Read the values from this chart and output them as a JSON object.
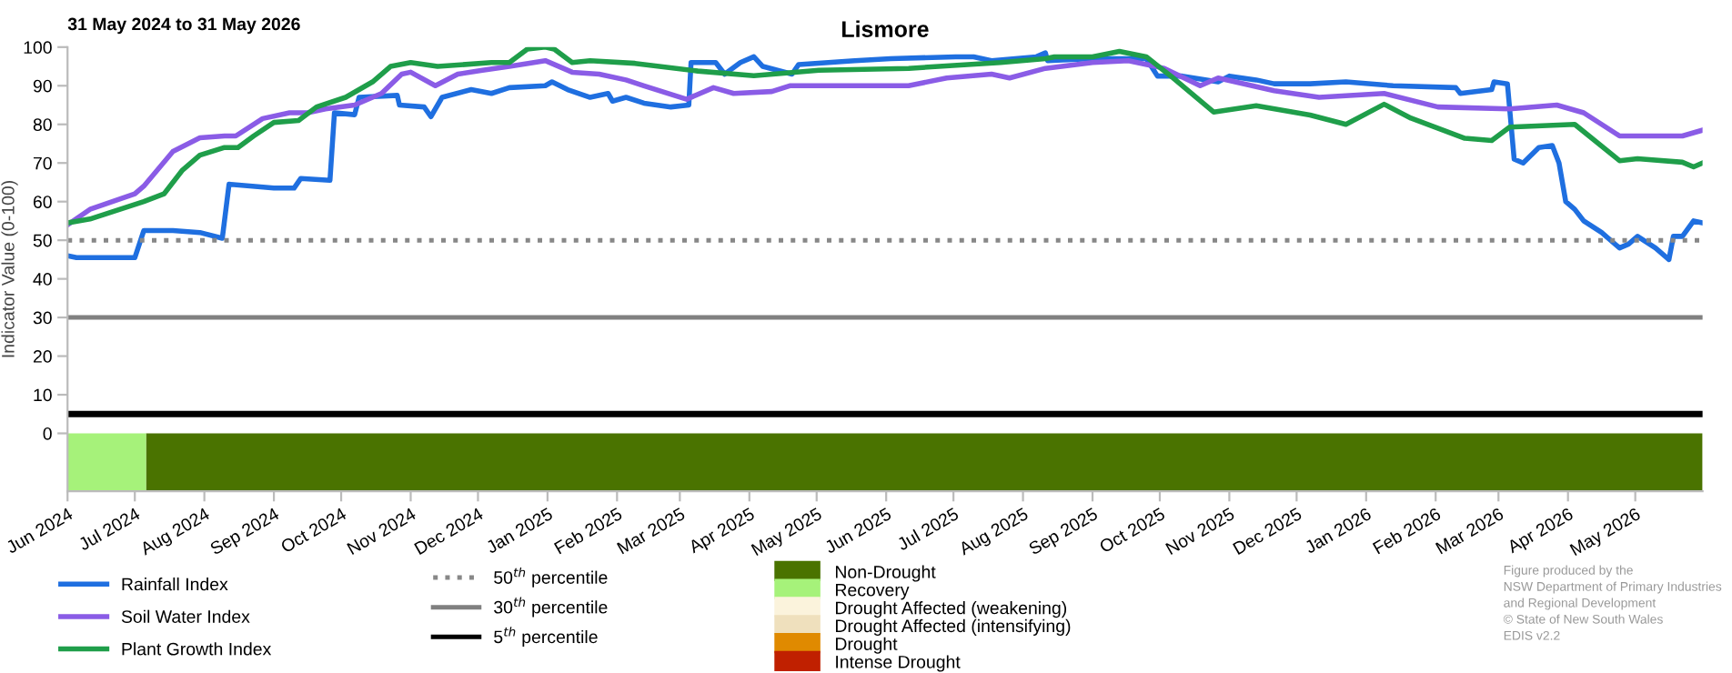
{
  "chart_data": {
    "type": "line",
    "title": "Lismore",
    "subtitle": "31 May 2024 to 31 May 2026",
    "ylabel": "Indicator Value (0-100)",
    "xlim": [
      "2024-06-01",
      "2026-05-31"
    ],
    "xticks": [
      {
        "value": "2024-06-01",
        "label": "Jun 2024"
      },
      {
        "value": "2024-07-01",
        "label": "Jul 2024"
      },
      {
        "value": "2024-08-01",
        "label": "Aug 2024"
      },
      {
        "value": "2024-09-01",
        "label": "Sep 2024"
      },
      {
        "value": "2024-10-01",
        "label": "Oct 2024"
      },
      {
        "value": "2024-11-01",
        "label": "Nov 2024"
      },
      {
        "value": "2024-12-01",
        "label": "Dec 2024"
      },
      {
        "value": "2025-01-01",
        "label": "Jan 2025"
      },
      {
        "value": "2025-02-01",
        "label": "Feb 2025"
      },
      {
        "value": "2025-03-01",
        "label": "Mar 2025"
      },
      {
        "value": "2025-04-01",
        "label": "Apr 2025"
      },
      {
        "value": "2025-05-01",
        "label": "May 2025"
      },
      {
        "value": "2025-06-01",
        "label": "Jun 2025"
      },
      {
        "value": "2025-07-01",
        "label": "Jul 2025"
      },
      {
        "value": "2025-08-01",
        "label": "Aug 2025"
      },
      {
        "value": "2025-09-01",
        "label": "Sep 2025"
      },
      {
        "value": "2025-10-01",
        "label": "Oct 2025"
      },
      {
        "value": "2025-11-01",
        "label": "Nov 2025"
      },
      {
        "value": "2025-12-01",
        "label": "Dec 2025"
      },
      {
        "value": "2026-01-01",
        "label": "Jan 2026"
      },
      {
        "value": "2026-02-01",
        "label": "Feb 2026"
      },
      {
        "value": "2026-03-01",
        "label": "Mar 2026"
      },
      {
        "value": "2026-04-01",
        "label": "Apr 2026"
      },
      {
        "value": "2026-05-01",
        "label": "May 2026"
      }
    ],
    "ylim": [
      -15,
      100
    ],
    "yticks": [
      0,
      10,
      20,
      30,
      40,
      50,
      60,
      70,
      80,
      90,
      100
    ],
    "grid": false,
    "legend": "bottom",
    "line_style": "solid",
    "marker": "none",
    "series": [
      {
        "name": "Rainfall Index",
        "color": "#1f6fe0",
        "x": [
          "2024-06-01",
          "2024-06-05",
          "2024-07-01",
          "2024-07-05",
          "2024-07-18",
          "2024-07-30",
          "2024-08-09",
          "2024-08-12",
          "2024-09-01",
          "2024-09-10",
          "2024-09-13",
          "2024-09-26",
          "2024-09-28",
          "2024-10-07",
          "2024-10-09",
          "2024-10-26",
          "2024-10-27",
          "2024-11-07",
          "2024-11-10",
          "2024-11-15",
          "2024-11-28",
          "2024-12-07",
          "2024-12-15",
          "2024-12-31",
          "2025-01-03",
          "2025-01-10",
          "2025-01-20",
          "2025-01-28",
          "2025-01-30",
          "2025-02-05",
          "2025-02-13",
          "2025-02-25",
          "2025-03-05",
          "2025-03-06",
          "2025-03-17",
          "2025-03-21",
          "2025-03-28",
          "2025-04-03",
          "2025-04-07",
          "2025-04-20",
          "2025-04-23",
          "2025-05-18",
          "2025-06-03",
          "2025-07-02",
          "2025-07-10",
          "2025-07-18",
          "2025-08-07",
          "2025-08-11",
          "2025-08-12",
          "2025-09-01",
          "2025-09-25",
          "2025-09-30",
          "2025-10-11",
          "2025-10-27",
          "2025-11-01",
          "2025-11-13",
          "2025-11-21",
          "2025-12-07",
          "2025-12-23",
          "2026-01-13",
          "2026-02-10",
          "2026-02-12",
          "2026-02-26",
          "2026-02-27",
          "2026-03-05",
          "2026-03-08",
          "2026-03-12",
          "2026-03-19",
          "2026-03-25",
          "2026-03-28",
          "2026-03-31",
          "2026-04-04",
          "2026-04-08",
          "2026-04-16",
          "2026-04-24",
          "2026-04-28",
          "2026-05-02",
          "2026-05-10",
          "2026-05-16",
          "2026-05-18",
          "2026-05-22",
          "2026-05-27",
          "2026-05-31"
        ],
        "values": [
          46,
          45.5,
          45.5,
          52.5,
          52.5,
          52,
          50.5,
          64.5,
          63.5,
          63.5,
          66,
          65.5,
          83,
          82.5,
          87,
          87.5,
          85,
          84.5,
          82,
          87,
          89,
          88,
          89.5,
          90,
          91,
          89,
          87,
          88,
          86,
          87,
          85.5,
          84.5,
          85,
          96,
          96,
          93,
          96,
          97.5,
          95,
          93,
          95.5,
          96.5,
          97,
          97.5,
          97.5,
          96.5,
          97.5,
          98.5,
          96.5,
          97,
          97,
          92.5,
          92.5,
          91,
          92.5,
          91.5,
          90.5,
          90.5,
          91,
          90,
          89.5,
          88,
          89,
          91,
          90.5,
          71,
          70,
          74,
          74.5,
          70,
          60,
          58,
          55,
          52,
          48,
          49,
          51,
          48,
          45,
          51,
          51,
          55,
          54.5
        ]
      },
      {
        "name": "Soil Water Index",
        "color": "#8a5ce6",
        "x": [
          "2024-06-01",
          "2024-06-11",
          "2024-07-01",
          "2024-07-05",
          "2024-07-18",
          "2024-07-30",
          "2024-08-10",
          "2024-08-15",
          "2024-08-27",
          "2024-09-08",
          "2024-09-16",
          "2024-09-24",
          "2024-10-07",
          "2024-10-19",
          "2024-10-28",
          "2024-11-01",
          "2024-11-12",
          "2024-11-22",
          "2024-12-03",
          "2024-12-15",
          "2024-12-31",
          "2025-01-12",
          "2025-01-24",
          "2025-02-05",
          "2025-02-13",
          "2025-03-04",
          "2025-03-16",
          "2025-03-25",
          "2025-04-11",
          "2025-04-19",
          "2025-05-26",
          "2025-06-11",
          "2025-06-28",
          "2025-07-18",
          "2025-07-26",
          "2025-08-11",
          "2025-09-01",
          "2025-09-17",
          "2025-10-03",
          "2025-10-19",
          "2025-10-27",
          "2025-11-21",
          "2025-12-11",
          "2026-01-09",
          "2026-02-02",
          "2026-03-06",
          "2026-03-27",
          "2026-04-08",
          "2026-04-24",
          "2026-05-22",
          "2026-05-31"
        ],
        "values": [
          54,
          58,
          62,
          64,
          73,
          76.5,
          77,
          77,
          81.5,
          83,
          83,
          84,
          85,
          88,
          93,
          93.5,
          90,
          93,
          94,
          95,
          96.5,
          93.5,
          93,
          91.5,
          90,
          86.5,
          89.5,
          88,
          88.5,
          90,
          90,
          90,
          92,
          93,
          92,
          94.5,
          96,
          96.5,
          94.5,
          90,
          92,
          88.7,
          87,
          88,
          84.5,
          84,
          85,
          83,
          77,
          77,
          78.5
        ]
      },
      {
        "name": "Plant Growth Index",
        "color": "#1f9e4a",
        "x": [
          "2024-06-01",
          "2024-06-11",
          "2024-07-05",
          "2024-07-14",
          "2024-07-22",
          "2024-07-30",
          "2024-08-10",
          "2024-08-16",
          "2024-08-23",
          "2024-09-01",
          "2024-09-12",
          "2024-09-20",
          "2024-10-03",
          "2024-10-15",
          "2024-10-23",
          "2024-11-01",
          "2024-11-13",
          "2024-12-07",
          "2024-12-15",
          "2024-12-23",
          "2024-12-31",
          "2025-01-04",
          "2025-01-12",
          "2025-01-20",
          "2025-02-09",
          "2025-03-09",
          "2025-04-03",
          "2025-05-02",
          "2025-06-11",
          "2025-07-22",
          "2025-08-11",
          "2025-08-15",
          "2025-09-01",
          "2025-09-13",
          "2025-09-25",
          "2025-10-07",
          "2025-10-25",
          "2025-11-13",
          "2025-12-07",
          "2025-12-23",
          "2026-01-09",
          "2026-01-21",
          "2026-02-14",
          "2026-02-26",
          "2026-03-06",
          "2026-04-04",
          "2026-04-24",
          "2026-05-02",
          "2026-05-22",
          "2026-05-27",
          "2026-05-31"
        ],
        "values": [
          54.5,
          55.5,
          60,
          62,
          68,
          72,
          74,
          74,
          77,
          80.5,
          81,
          84.5,
          87,
          91,
          95,
          96,
          95,
          96,
          96,
          99.5,
          100,
          99.5,
          96,
          96.5,
          95.8,
          93.8,
          92.6,
          94,
          94.5,
          96,
          97,
          97.5,
          97.5,
          98.9,
          97.5,
          92,
          83.2,
          84.8,
          82.4,
          80,
          85.2,
          81.6,
          76.4,
          75.8,
          79.3,
          80,
          70.6,
          71.1,
          70.2,
          69,
          70
        ]
      },
      {
        "name": "Drought Affected (weakening)",
        "type": "area",
        "color": "#fbf3dc"
      },
      {
        "name": "Drought Affected (intensifying)",
        "type": "area",
        "color": "#efe0bd"
      },
      {
        "name": "Drought",
        "type": "area",
        "color": "#e08a00"
      },
      {
        "name": "Intense Drought",
        "type": "area",
        "color": "#c02000"
      }
    ],
    "bands": [
      {
        "axis": "x",
        "from": "2024-07-06",
        "to": "2026-05-31",
        "label": "Non-Drought",
        "color": "#4a7300"
      },
      {
        "axis": "x",
        "from": "2024-06-01",
        "to": "2024-07-06",
        "label": "Recovery",
        "color": "#a6f27a"
      }
    ],
    "ref_lines": [
      {
        "axis": "y",
        "value": 50,
        "label": "50$^{th}$ percentile",
        "color": "#888888",
        "line_style": "dotted"
      },
      {
        "axis": "y",
        "value": 30,
        "label": "30$^{th}$ percentile",
        "color": "#808080",
        "line_style": "solid"
      },
      {
        "axis": "y",
        "value": 5,
        "label": "5$^{th}$ percentile",
        "color": "#000000",
        "line_style": "solid"
      }
    ],
    "annotations": [
      "Figure produced by the\nNSW Department of Primary Industries\nand Regional Development\n© State of New South Wales\nEDIS v2.2"
    ]
  }
}
